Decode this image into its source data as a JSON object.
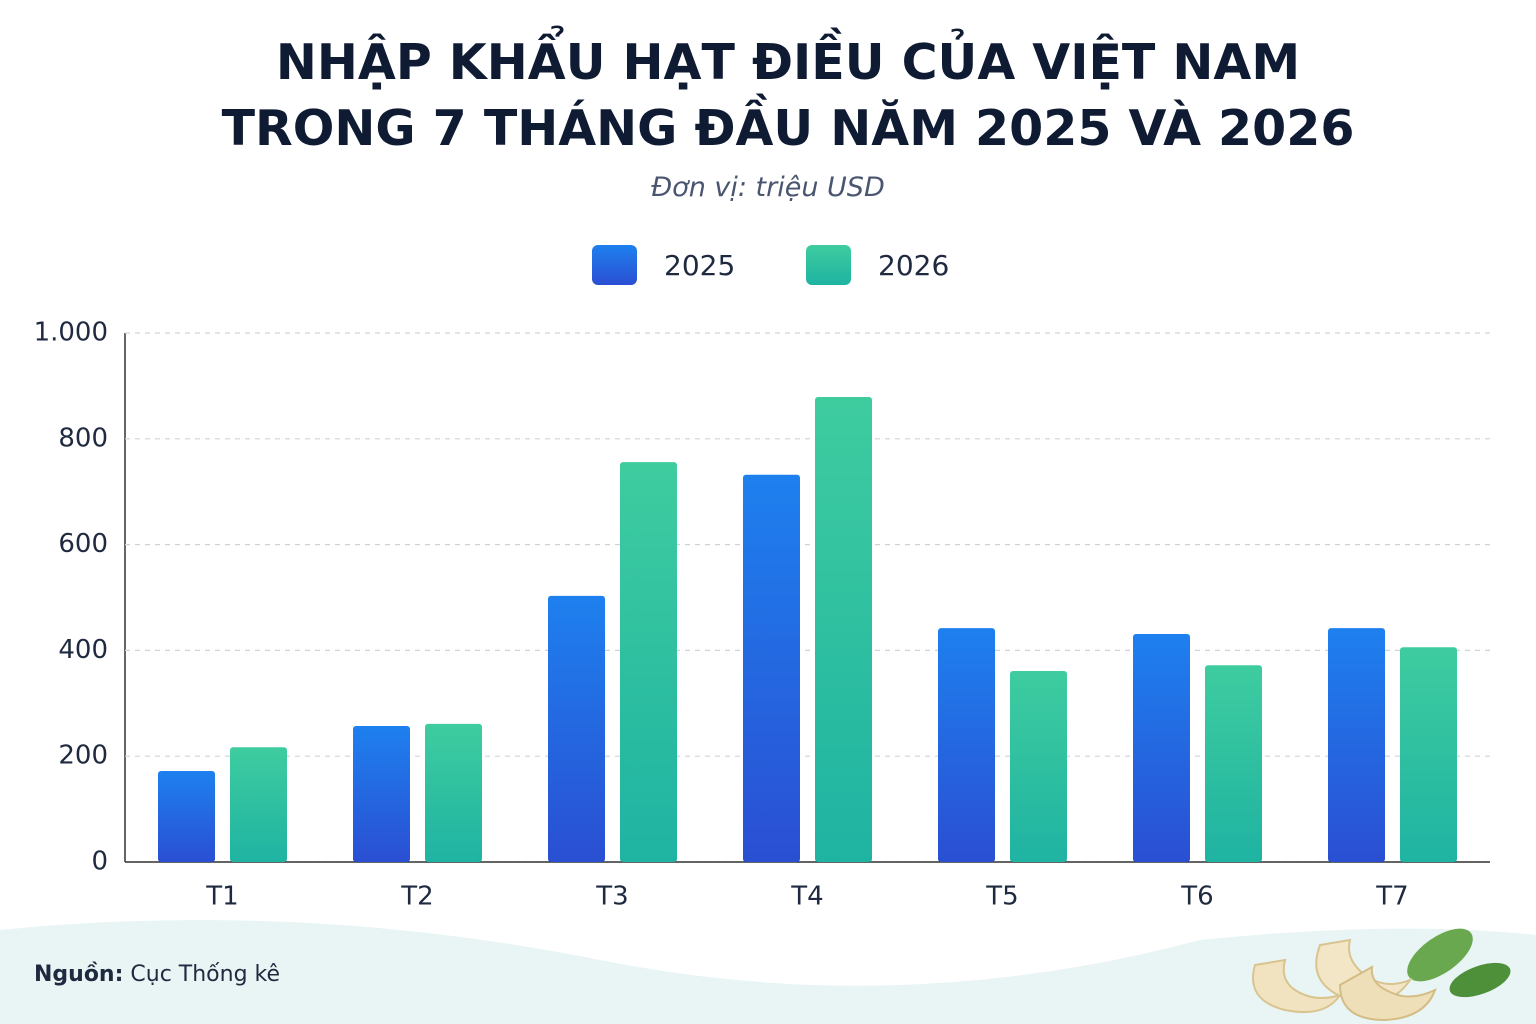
{
  "chart_data": {
    "type": "bar",
    "title": "NHẬP KHẨU HẠT ĐIỀU CỦA VIỆT NAM TRONG 7 THÁNG ĐẦU NĂM 2025 VÀ 2026",
    "subtitle": "Đơn vị: triệu USD",
    "categories": [
      "T1",
      "T2",
      "T3",
      "T4",
      "T5",
      "T6",
      "T7"
    ],
    "series": [
      {
        "name": "2025",
        "color": "#1f6fe6",
        "values": [
          172,
          257,
          503,
          732,
          442,
          431,
          442
        ]
      },
      {
        "name": "2026",
        "color": "#2cc2a2",
        "values": [
          217,
          261,
          756,
          879,
          361,
          372,
          406
        ]
      }
    ],
    "ylim": [
      0,
      1000
    ],
    "yticks": [
      0,
      200,
      400,
      600,
      800,
      {
        "value": 1000,
        "label": "1.000"
      }
    ],
    "grid": true,
    "legend": "top",
    "source_label": "Nguồn:",
    "source": "Cục Thống kê"
  }
}
